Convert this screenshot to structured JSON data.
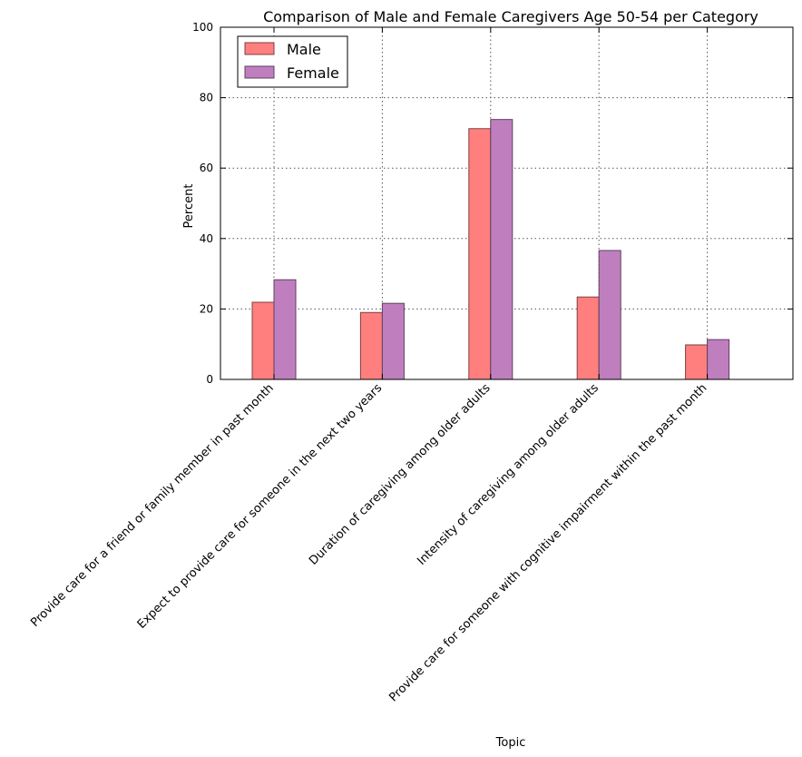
{
  "chart_data": {
    "type": "bar",
    "title": "Comparison of Male and Female Caregivers Age 50-54 per Category",
    "xlabel": "Topic",
    "ylabel": "Percent",
    "ylim": [
      0,
      100
    ],
    "yticks": [
      "0",
      "20",
      "40",
      "60",
      "80",
      "100"
    ],
    "grid": true,
    "legend_position": "top-left",
    "categories": [
      "Provide care for a friend or family member in past month",
      "Expect to provide care for someone in the next two years",
      "Duration of caregiving among older adults",
      "Intensity of caregiving among older adults",
      "Provide care for someone with cognitive impairment within the past month"
    ],
    "series": [
      {
        "name": "Male",
        "color": "#ff7f7f",
        "values": [
          21.9,
          19.0,
          71.2,
          23.4,
          9.8
        ]
      },
      {
        "name": "Female",
        "color": "#bf7fbf",
        "values": [
          28.3,
          21.6,
          73.8,
          36.6,
          11.3
        ]
      }
    ]
  }
}
